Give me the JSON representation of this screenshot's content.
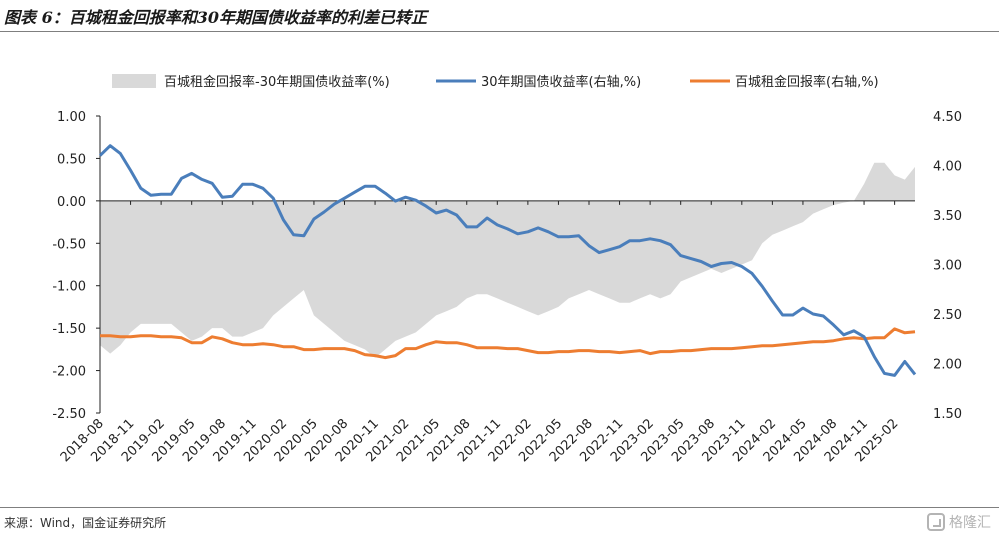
{
  "title": "图表 6：百城租金回报率和30年期国债收益率的利差已转正",
  "source": "来源：Wind，国金证券研究所",
  "watermark": "格隆汇",
  "chart_data": {
    "type": "area+line",
    "legend": [
      {
        "name": "百城租金回报率-30年期国债收益率(%)",
        "color": "#d9d9d9",
        "kind": "area"
      },
      {
        "name": "30年期国债收益率(右轴,%)",
        "color": "#4a7ebb",
        "kind": "line"
      },
      {
        "name": "百城租金回报率(右轴,%)",
        "color": "#ed7d31",
        "kind": "line"
      }
    ],
    "left_axis": {
      "min": -2.5,
      "max": 1.0,
      "ticks": [
        1.0,
        0.5,
        0.0,
        -0.5,
        -1.0,
        -1.5,
        -2.0,
        -2.5
      ]
    },
    "right_axis": {
      "min": 1.5,
      "max": 4.5,
      "ticks": [
        4.5,
        4.0,
        3.5,
        3.0,
        2.5,
        2.0,
        1.5
      ]
    },
    "x_labels": [
      "2018-08",
      "2018-11",
      "2019-02",
      "2019-05",
      "2019-08",
      "2019-11",
      "2020-02",
      "2020-05",
      "2020-08",
      "2020-11",
      "2021-02",
      "2021-05",
      "2021-08",
      "2021-11",
      "2022-02",
      "2022-05",
      "2022-08",
      "2022-11",
      "2023-02",
      "2023-05",
      "2023-08",
      "2023-11",
      "2024-02",
      "2024-05",
      "2024-08",
      "2024-11",
      "2025-02"
    ],
    "months": [
      "2018-08",
      "2018-09",
      "2018-10",
      "2018-11",
      "2018-12",
      "2019-01",
      "2019-02",
      "2019-03",
      "2019-04",
      "2019-05",
      "2019-06",
      "2019-07",
      "2019-08",
      "2019-09",
      "2019-10",
      "2019-11",
      "2019-12",
      "2020-01",
      "2020-02",
      "2020-03",
      "2020-04",
      "2020-05",
      "2020-06",
      "2020-07",
      "2020-08",
      "2020-09",
      "2020-10",
      "2020-11",
      "2020-12",
      "2021-01",
      "2021-02",
      "2021-03",
      "2021-04",
      "2021-05",
      "2021-06",
      "2021-07",
      "2021-08",
      "2021-09",
      "2021-10",
      "2021-11",
      "2021-12",
      "2022-01",
      "2022-02",
      "2022-03",
      "2022-04",
      "2022-05",
      "2022-06",
      "2022-07",
      "2022-08",
      "2022-09",
      "2022-10",
      "2022-11",
      "2022-12",
      "2023-01",
      "2023-02",
      "2023-03",
      "2023-04",
      "2023-05",
      "2023-06",
      "2023-07",
      "2023-08",
      "2023-09",
      "2023-10",
      "2023-11",
      "2023-12",
      "2024-01",
      "2024-02",
      "2024-03",
      "2024-04",
      "2024-05",
      "2024-06",
      "2024-07",
      "2024-08",
      "2024-09",
      "2024-10",
      "2024-11",
      "2024-12",
      "2025-01",
      "2025-02",
      "2025-03",
      "2025-04"
    ],
    "series": [
      {
        "name": "百城租金回报率-30年期国债收益率(%)",
        "axis": "left",
        "values": [
          -1.7,
          -1.8,
          -1.7,
          -1.55,
          -1.45,
          -1.45,
          -1.45,
          -1.45,
          -1.55,
          -1.65,
          -1.6,
          -1.5,
          -1.5,
          -1.6,
          -1.6,
          -1.55,
          -1.5,
          -1.35,
          -1.25,
          -1.15,
          -1.05,
          -1.35,
          -1.45,
          -1.55,
          -1.65,
          -1.7,
          -1.75,
          -1.85,
          -1.75,
          -1.65,
          -1.6,
          -1.55,
          -1.45,
          -1.35,
          -1.3,
          -1.25,
          -1.15,
          -1.1,
          -1.1,
          -1.15,
          -1.2,
          -1.25,
          -1.3,
          -1.35,
          -1.3,
          -1.25,
          -1.15,
          -1.1,
          -1.05,
          -1.1,
          -1.15,
          -1.2,
          -1.2,
          -1.15,
          -1.1,
          -1.15,
          -1.1,
          -0.95,
          -0.9,
          -0.85,
          -0.8,
          -0.85,
          -0.8,
          -0.75,
          -0.7,
          -0.5,
          -0.4,
          -0.35,
          -0.3,
          -0.25,
          -0.15,
          -0.1,
          -0.05,
          -0.02,
          0.0,
          0.2,
          0.45,
          0.45,
          0.3,
          0.25,
          0.4
        ]
      },
      {
        "name": "30年期国债收益率(右轴,%)",
        "axis": "right",
        "values": [
          4.1,
          4.2,
          4.12,
          3.95,
          3.77,
          3.7,
          3.71,
          3.71,
          3.87,
          3.92,
          3.86,
          3.82,
          3.68,
          3.69,
          3.81,
          3.81,
          3.77,
          3.67,
          3.45,
          3.3,
          3.29,
          3.46,
          3.53,
          3.61,
          3.67,
          3.73,
          3.79,
          3.79,
          3.72,
          3.64,
          3.68,
          3.65,
          3.59,
          3.52,
          3.55,
          3.5,
          3.38,
          3.38,
          3.47,
          3.4,
          3.36,
          3.31,
          3.33,
          3.37,
          3.33,
          3.28,
          3.28,
          3.29,
          3.19,
          3.12,
          3.15,
          3.18,
          3.24,
          3.24,
          3.26,
          3.24,
          3.2,
          3.09,
          3.06,
          3.03,
          2.98,
          3.01,
          3.02,
          2.98,
          2.91,
          2.78,
          2.63,
          2.49,
          2.49,
          2.56,
          2.5,
          2.48,
          2.39,
          2.29,
          2.33,
          2.27,
          2.07,
          1.9,
          1.88,
          2.02,
          1.89
        ]
      },
      {
        "name": "百城租金回报率(右轴,%)",
        "axis": "right",
        "values": [
          2.28,
          2.28,
          2.27,
          2.27,
          2.28,
          2.28,
          2.27,
          2.27,
          2.26,
          2.21,
          2.21,
          2.27,
          2.25,
          2.21,
          2.19,
          2.19,
          2.2,
          2.19,
          2.17,
          2.17,
          2.14,
          2.14,
          2.15,
          2.15,
          2.15,
          2.13,
          2.09,
          2.08,
          2.06,
          2.08,
          2.15,
          2.15,
          2.19,
          2.22,
          2.21,
          2.21,
          2.19,
          2.16,
          2.16,
          2.16,
          2.15,
          2.15,
          2.13,
          2.11,
          2.11,
          2.12,
          2.12,
          2.13,
          2.13,
          2.12,
          2.12,
          2.11,
          2.12,
          2.13,
          2.1,
          2.12,
          2.12,
          2.13,
          2.13,
          2.14,
          2.15,
          2.15,
          2.15,
          2.16,
          2.17,
          2.18,
          2.18,
          2.19,
          2.2,
          2.21,
          2.22,
          2.22,
          2.23,
          2.25,
          2.26,
          2.25,
          2.26,
          2.26,
          2.35,
          2.31,
          2.32
        ]
      }
    ]
  }
}
